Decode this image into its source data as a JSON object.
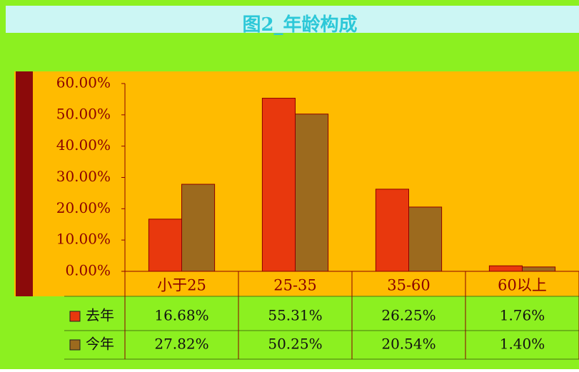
{
  "chart_data": {
    "type": "bar",
    "title": "图2_年龄构成",
    "categories": [
      "小于25",
      "25-35",
      "35-60",
      "60以上"
    ],
    "series": [
      {
        "name": "去年",
        "color": "#e8380d",
        "values": [
          16.68,
          55.31,
          26.25,
          1.76
        ],
        "value_labels": [
          "16.68%",
          "55.31%",
          "26.25%",
          "1.76%"
        ]
      },
      {
        "name": "今年",
        "color": "#9c6a1e",
        "values": [
          27.82,
          50.25,
          20.54,
          1.4
        ],
        "value_labels": [
          "27.82%",
          "50.25%",
          "20.54%",
          "1.40%"
        ]
      }
    ],
    "ylim": [
      0,
      60
    ],
    "yticks": [
      {
        "value": 0,
        "label": "0.00%"
      },
      {
        "value": 10,
        "label": "10.00%"
      },
      {
        "value": 20,
        "label": "20.00%"
      },
      {
        "value": 30,
        "label": "30.00%"
      },
      {
        "value": 40,
        "label": "40.00%"
      },
      {
        "value": 50,
        "label": "50.00%"
      },
      {
        "value": 60,
        "label": "60.00%"
      }
    ],
    "grid": false
  }
}
